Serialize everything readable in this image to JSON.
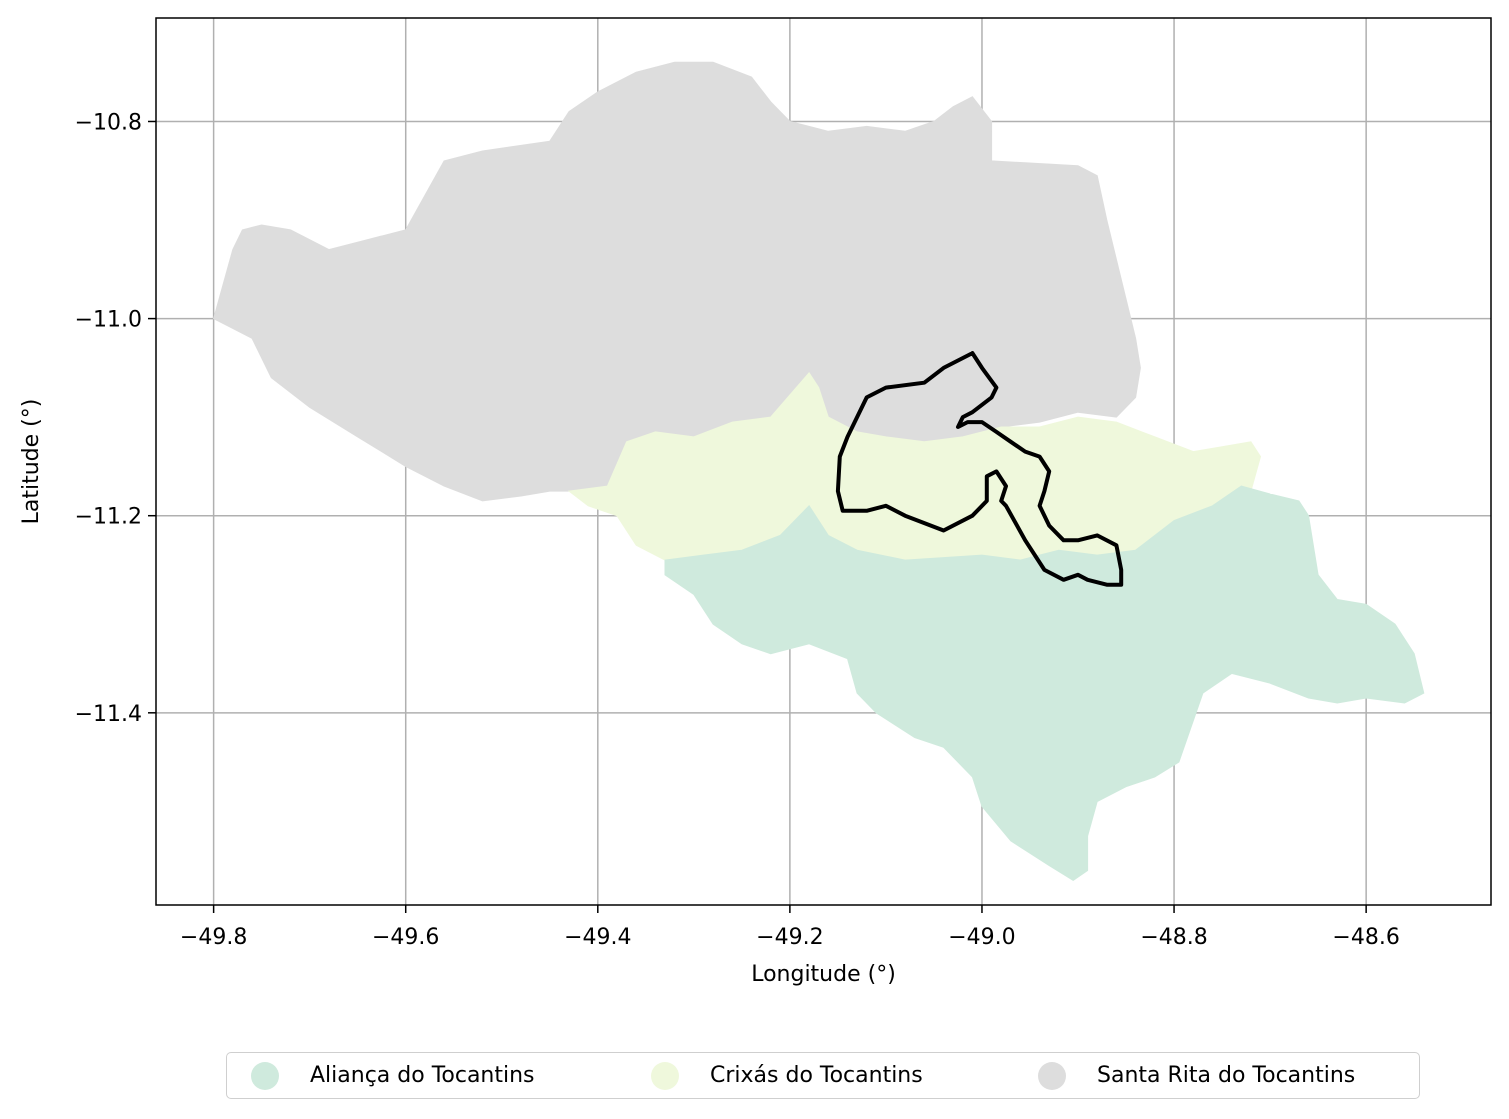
{
  "map": {
    "xlabel": "Longitude (°)",
    "ylabel": "Latitude (°)",
    "xlim": [
      -49.86,
      -48.47
    ],
    "ylim": [
      -11.595,
      -10.695
    ],
    "x_ticks": [
      -49.8,
      -49.6,
      -49.4,
      -49.2,
      -49.0,
      -48.8,
      -48.6
    ],
    "x_tick_labels": [
      "−49.8",
      "−49.6",
      "−49.4",
      "−49.2",
      "−49.0",
      "−48.8",
      "−48.6"
    ],
    "y_ticks": [
      -10.8,
      -11.0,
      -11.2,
      -11.4
    ],
    "y_tick_labels": [
      "−10.8",
      "−11.0",
      "−11.2",
      "−11.4"
    ],
    "grid": true,
    "legend_position": "bottom-center"
  },
  "regions": [
    {
      "name": "Aliança do Tocantins",
      "color": "#cfeadd",
      "polygon": [
        [
          -49.33,
          -11.245
        ],
        [
          -49.29,
          -11.24
        ],
        [
          -49.25,
          -11.235
        ],
        [
          -49.21,
          -11.22
        ],
        [
          -49.18,
          -11.19
        ],
        [
          -49.16,
          -11.22
        ],
        [
          -49.13,
          -11.235
        ],
        [
          -49.08,
          -11.245
        ],
        [
          -49.0,
          -11.24
        ],
        [
          -48.96,
          -11.245
        ],
        [
          -48.94,
          -11.24
        ],
        [
          -48.92,
          -11.235
        ],
        [
          -48.88,
          -11.24
        ],
        [
          -48.84,
          -11.235
        ],
        [
          -48.8,
          -11.205
        ],
        [
          -48.76,
          -11.19
        ],
        [
          -48.73,
          -11.17
        ],
        [
          -48.7,
          -11.178
        ],
        [
          -48.67,
          -11.185
        ],
        [
          -48.66,
          -11.2
        ],
        [
          -48.65,
          -11.26
        ],
        [
          -48.63,
          -11.285
        ],
        [
          -48.6,
          -11.29
        ],
        [
          -48.57,
          -11.31
        ],
        [
          -48.55,
          -11.34
        ],
        [
          -48.54,
          -11.38
        ],
        [
          -48.56,
          -11.39
        ],
        [
          -48.6,
          -11.385
        ],
        [
          -48.63,
          -11.39
        ],
        [
          -48.66,
          -11.385
        ],
        [
          -48.7,
          -11.37
        ],
        [
          -48.74,
          -11.36
        ],
        [
          -48.77,
          -11.38
        ],
        [
          -48.795,
          -11.45
        ],
        [
          -48.82,
          -11.465
        ],
        [
          -48.85,
          -11.475
        ],
        [
          -48.88,
          -11.49
        ],
        [
          -48.89,
          -11.525
        ],
        [
          -48.89,
          -11.56
        ],
        [
          -48.905,
          -11.57
        ],
        [
          -48.93,
          -11.555
        ],
        [
          -48.97,
          -11.53
        ],
        [
          -49.0,
          -11.495
        ],
        [
          -49.01,
          -11.465
        ],
        [
          -49.04,
          -11.435
        ],
        [
          -49.07,
          -11.425
        ],
        [
          -49.11,
          -11.4
        ],
        [
          -49.13,
          -11.38
        ],
        [
          -49.14,
          -11.345
        ],
        [
          -49.18,
          -11.33
        ],
        [
          -49.22,
          -11.34
        ],
        [
          -49.25,
          -11.33
        ],
        [
          -49.28,
          -11.31
        ],
        [
          -49.3,
          -11.28
        ],
        [
          -49.33,
          -11.26
        ]
      ]
    },
    {
      "name": "Crixás do Tocantins",
      "color": "#eff8dc",
      "polygon": [
        [
          -49.43,
          -11.175
        ],
        [
          -49.39,
          -11.17
        ],
        [
          -49.37,
          -11.125
        ],
        [
          -49.34,
          -11.115
        ],
        [
          -49.3,
          -11.12
        ],
        [
          -49.26,
          -11.105
        ],
        [
          -49.22,
          -11.1
        ],
        [
          -49.18,
          -11.055
        ],
        [
          -49.17,
          -11.07
        ],
        [
          -49.16,
          -11.1
        ],
        [
          -49.13,
          -11.115
        ],
        [
          -49.1,
          -11.12
        ],
        [
          -49.06,
          -11.125
        ],
        [
          -49.02,
          -11.12
        ],
        [
          -48.98,
          -11.11
        ],
        [
          -48.94,
          -11.11
        ],
        [
          -48.9,
          -11.1
        ],
        [
          -48.86,
          -11.105
        ],
        [
          -48.82,
          -11.12
        ],
        [
          -48.78,
          -11.135
        ],
        [
          -48.75,
          -11.13
        ],
        [
          -48.72,
          -11.125
        ],
        [
          -48.71,
          -11.14
        ],
        [
          -48.72,
          -11.175
        ],
        [
          -48.73,
          -11.2
        ],
        [
          -48.77,
          -11.21
        ],
        [
          -48.8,
          -11.22
        ],
        [
          -48.84,
          -11.235
        ],
        [
          -48.88,
          -11.24
        ],
        [
          -48.92,
          -11.235
        ],
        [
          -48.96,
          -11.245
        ],
        [
          -49.0,
          -11.24
        ],
        [
          -49.08,
          -11.245
        ],
        [
          -49.13,
          -11.235
        ],
        [
          -49.16,
          -11.22
        ],
        [
          -49.18,
          -11.19
        ],
        [
          -49.21,
          -11.22
        ],
        [
          -49.25,
          -11.235
        ],
        [
          -49.29,
          -11.24
        ],
        [
          -49.33,
          -11.245
        ],
        [
          -49.36,
          -11.23
        ],
        [
          -49.38,
          -11.2
        ],
        [
          -49.41,
          -11.19
        ]
      ]
    },
    {
      "name": "Santa Rita do Tocantins",
      "color": "#dddddd",
      "polygon": [
        [
          -49.8,
          -11.0
        ],
        [
          -49.79,
          -10.965
        ],
        [
          -49.78,
          -10.93
        ],
        [
          -49.77,
          -10.91
        ],
        [
          -49.75,
          -10.905
        ],
        [
          -49.72,
          -10.91
        ],
        [
          -49.68,
          -10.93
        ],
        [
          -49.64,
          -10.92
        ],
        [
          -49.6,
          -10.91
        ],
        [
          -49.58,
          -10.875
        ],
        [
          -49.56,
          -10.84
        ],
        [
          -49.52,
          -10.83
        ],
        [
          -49.45,
          -10.82
        ],
        [
          -49.43,
          -10.79
        ],
        [
          -49.4,
          -10.77
        ],
        [
          -49.36,
          -10.75
        ],
        [
          -49.32,
          -10.74
        ],
        [
          -49.28,
          -10.74
        ],
        [
          -49.24,
          -10.755
        ],
        [
          -49.22,
          -10.78
        ],
        [
          -49.2,
          -10.8
        ],
        [
          -49.16,
          -10.81
        ],
        [
          -49.12,
          -10.805
        ],
        [
          -49.08,
          -10.81
        ],
        [
          -49.05,
          -10.8
        ],
        [
          -49.03,
          -10.785
        ],
        [
          -49.01,
          -10.775
        ],
        [
          -48.99,
          -10.8
        ],
        [
          -48.99,
          -10.84
        ],
        [
          -48.9,
          -10.845
        ],
        [
          -48.88,
          -10.855
        ],
        [
          -48.87,
          -10.9
        ],
        [
          -48.86,
          -10.94
        ],
        [
          -48.85,
          -10.98
        ],
        [
          -48.84,
          -11.02
        ],
        [
          -48.835,
          -11.05
        ],
        [
          -48.84,
          -11.08
        ],
        [
          -48.86,
          -11.1
        ],
        [
          -48.9,
          -11.095
        ],
        [
          -48.94,
          -11.105
        ],
        [
          -48.98,
          -11.11
        ],
        [
          -49.02,
          -11.12
        ],
        [
          -49.06,
          -11.125
        ],
        [
          -49.1,
          -11.12
        ],
        [
          -49.13,
          -11.115
        ],
        [
          -49.16,
          -11.1
        ],
        [
          -49.17,
          -11.07
        ],
        [
          -49.18,
          -11.055
        ],
        [
          -49.22,
          -11.1
        ],
        [
          -49.26,
          -11.105
        ],
        [
          -49.3,
          -11.12
        ],
        [
          -49.34,
          -11.115
        ],
        [
          -49.37,
          -11.125
        ],
        [
          -49.39,
          -11.17
        ],
        [
          -49.43,
          -11.175
        ],
        [
          -49.45,
          -11.175
        ],
        [
          -49.48,
          -11.18
        ],
        [
          -49.52,
          -11.185
        ],
        [
          -49.56,
          -11.17
        ],
        [
          -49.6,
          -11.15
        ],
        [
          -49.65,
          -11.12
        ],
        [
          -49.7,
          -11.09
        ],
        [
          -49.74,
          -11.06
        ],
        [
          -49.76,
          -11.02
        ],
        [
          -49.78,
          -11.01
        ]
      ]
    }
  ],
  "boundary_line": {
    "color": "#000000",
    "points": [
      [
        -49.01,
        -11.035
      ],
      [
        -49.0,
        -11.05
      ],
      [
        -48.985,
        -11.07
      ],
      [
        -48.99,
        -11.08
      ],
      [
        -49.01,
        -11.095
      ],
      [
        -49.02,
        -11.1
      ],
      [
        -49.025,
        -11.11
      ],
      [
        -49.015,
        -11.105
      ],
      [
        -49.0,
        -11.105
      ],
      [
        -48.985,
        -11.115
      ],
      [
        -48.97,
        -11.125
      ],
      [
        -48.955,
        -11.135
      ],
      [
        -48.94,
        -11.14
      ],
      [
        -48.93,
        -11.155
      ],
      [
        -48.935,
        -11.175
      ],
      [
        -48.94,
        -11.19
      ],
      [
        -48.93,
        -11.21
      ],
      [
        -48.915,
        -11.225
      ],
      [
        -48.9,
        -11.225
      ],
      [
        -48.88,
        -11.22
      ],
      [
        -48.86,
        -11.23
      ],
      [
        -48.855,
        -11.255
      ],
      [
        -48.855,
        -11.27
      ],
      [
        -48.87,
        -11.27
      ],
      [
        -48.89,
        -11.265
      ],
      [
        -48.9,
        -11.26
      ],
      [
        -48.915,
        -11.265
      ],
      [
        -48.935,
        -11.255
      ],
      [
        -48.955,
        -11.225
      ],
      [
        -48.975,
        -11.19
      ],
      [
        -48.98,
        -11.185
      ],
      [
        -48.975,
        -11.17
      ],
      [
        -48.985,
        -11.155
      ],
      [
        -48.995,
        -11.16
      ],
      [
        -48.995,
        -11.185
      ],
      [
        -49.01,
        -11.2
      ],
      [
        -49.04,
        -11.215
      ],
      [
        -49.08,
        -11.2
      ],
      [
        -49.1,
        -11.19
      ],
      [
        -49.12,
        -11.195
      ],
      [
        -49.145,
        -11.195
      ],
      [
        -49.15,
        -11.175
      ],
      [
        -49.148,
        -11.14
      ],
      [
        -49.14,
        -11.12
      ],
      [
        -49.12,
        -11.08
      ],
      [
        -49.1,
        -11.07
      ],
      [
        -49.06,
        -11.065
      ],
      [
        -49.04,
        -11.05
      ],
      [
        -49.01,
        -11.035
      ]
    ]
  },
  "legend": {
    "items": [
      {
        "label": "Aliança do Tocantins",
        "color": "#cfeadd"
      },
      {
        "label": "Crixás do Tocantins",
        "color": "#eff8dc"
      },
      {
        "label": "Santa Rita do Tocantins",
        "color": "#dddddd"
      }
    ]
  }
}
